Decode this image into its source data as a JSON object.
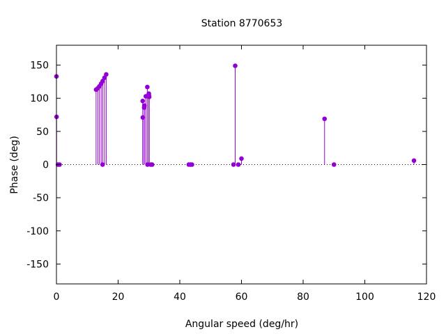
{
  "chart_data": {
    "type": "scatter",
    "title": "Station 8770653",
    "xlabel": "Angular speed (deg/hr)",
    "ylabel": "Phase (deg)",
    "xlim": [
      0,
      120
    ],
    "ylim": [
      -180,
      180
    ],
    "xticks": [
      0,
      20,
      40,
      60,
      80,
      100,
      120
    ],
    "yticks": [
      -150,
      -100,
      -50,
      0,
      50,
      100,
      150
    ],
    "grid": false,
    "zero_line": true,
    "color": "#9400d3",
    "series": [
      {
        "x": [
          0.0,
          0.04,
          0.5,
          1.0,
          12.85,
          13.4,
          13.94,
          14.5,
          14.96,
          15.0,
          15.59,
          16.14,
          27.97,
          28.0,
          28.44,
          28.51,
          28.98,
          29.47,
          29.53,
          29.96,
          30.0,
          30.08,
          30.55,
          31.02,
          42.93,
          43.47,
          43.94,
          57.42,
          57.97,
          58.98,
          60.0,
          86.95,
          90.0,
          115.94
        ],
        "y": [
          133,
          72,
          0,
          0,
          113,
          115,
          118,
          122,
          0,
          126,
          131,
          136,
          96,
          71,
          86,
          89,
          103,
          117,
          0,
          107,
          104,
          102,
          0,
          0,
          0,
          0,
          0,
          0,
          149,
          0,
          9,
          69,
          0,
          6
        ]
      }
    ]
  }
}
